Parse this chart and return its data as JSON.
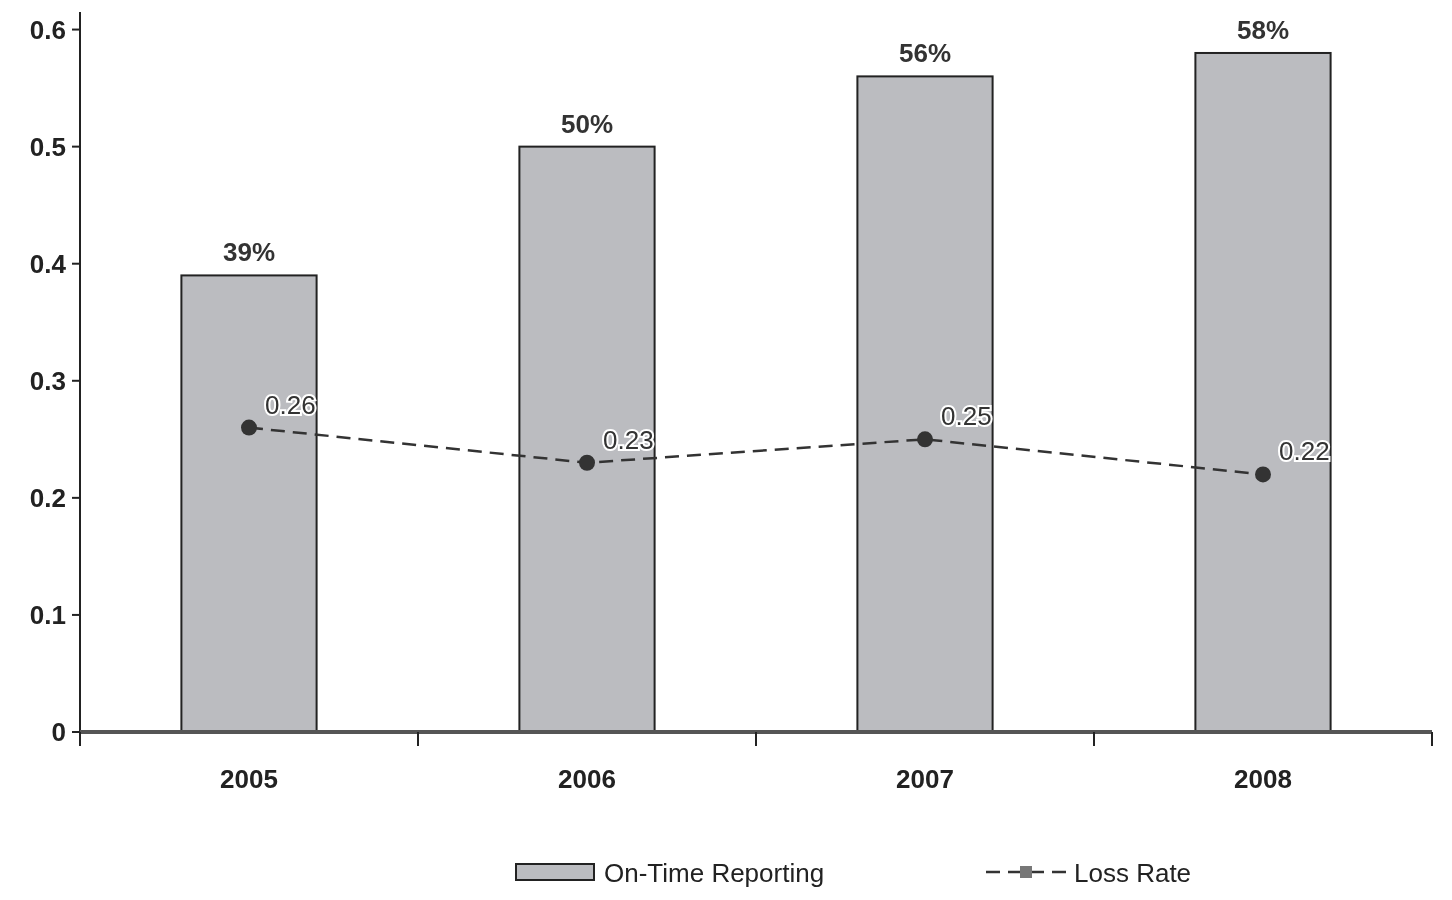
{
  "chart_data": {
    "type": "bar",
    "categories": [
      "2005",
      "2006",
      "2007",
      "2008"
    ],
    "series": [
      {
        "name": "On-Time Reporting",
        "color": "#bbbcc0",
        "values": [
          0.39,
          0.5,
          0.56,
          0.58
        ],
        "value_labels": [
          "39%",
          "50%",
          "56%",
          "58%"
        ]
      },
      {
        "name": "Loss Rate",
        "type": "line",
        "color": "#333333",
        "values": [
          0.26,
          0.23,
          0.25,
          0.22
        ],
        "value_labels": [
          "0.26",
          "0.23",
          "0.25",
          "0.22"
        ],
        "marker": "circle",
        "line_style": "dashed"
      }
    ],
    "ylim": [
      0,
      0.615
    ],
    "yticks": [
      0,
      0.1,
      0.2,
      0.3,
      0.4,
      0.5,
      0.6
    ],
    "legend": "bottom",
    "grid": false
  }
}
